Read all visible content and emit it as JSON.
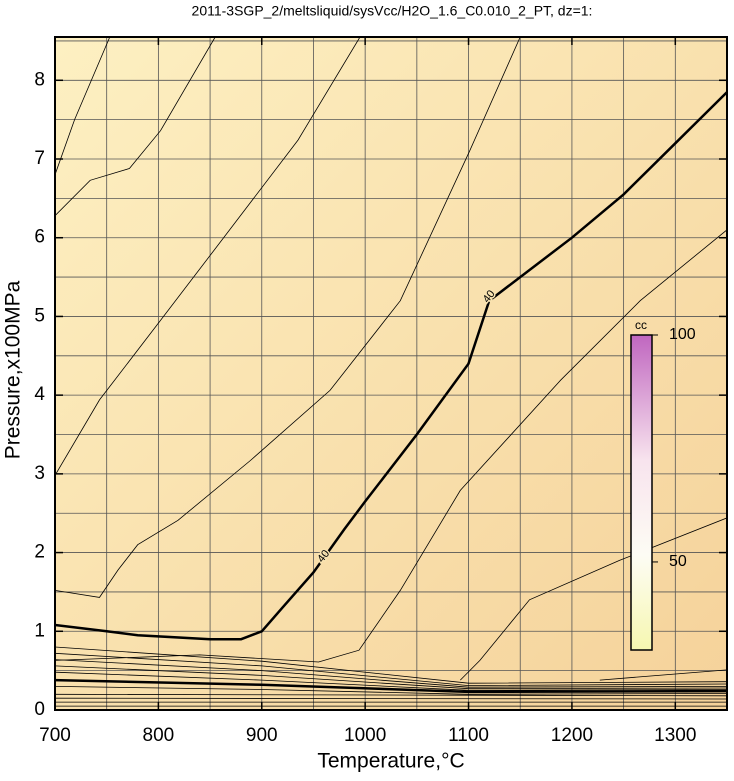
{
  "chart_data": {
    "type": "contour",
    "title": "2011-3SGP_2/meltsliquid/sysVcc/H2O_1.6_C0.010_2_PT, dz=1:",
    "xlabel": "Temperature,°C",
    "ylabel": "Pressure,x100MPa",
    "xlim": [
      700,
      1350
    ],
    "ylim": [
      0,
      8.55
    ],
    "xticks": [
      700,
      800,
      900,
      1000,
      1100,
      1200,
      1300
    ],
    "yticks": [
      0,
      1,
      2,
      3,
      4,
      5,
      6,
      7,
      8
    ],
    "xgrid_step": 50,
    "ygrid_step": 0.5,
    "color": "#000000",
    "series": [
      {
        "x": [
          700,
          750,
          780,
          850,
          880,
          900,
          920,
          950,
          980,
          1000,
          1050,
          1100,
          1120,
          1150,
          1200,
          1250,
          1300,
          1350
        ],
        "y": [
          1.08,
          1.0,
          0.95,
          0.9,
          0.9,
          1.0,
          1.3,
          1.75,
          2.3,
          2.65,
          3.5,
          4.4,
          5.2,
          5.5,
          6.0,
          6.55,
          7.2,
          7.85
        ],
        "bold": true
      },
      {
        "x": [
          700,
          719,
          753
        ],
        "y": [
          6.8,
          7.5,
          8.55
        ]
      },
      {
        "x": [
          700,
          734,
          772,
          802,
          855
        ],
        "y": [
          6.28,
          6.73,
          6.88,
          7.36,
          8.55
        ]
      },
      {
        "x": [
          700,
          743,
          802,
          869,
          935,
          995
        ],
        "y": [
          2.98,
          3.94,
          4.95,
          6.1,
          7.24,
          8.55
        ]
      },
      {
        "x": [
          700,
          743,
          761,
          780,
          819,
          889,
          966,
          1034,
          1101,
          1150
        ],
        "y": [
          1.52,
          1.43,
          1.78,
          2.1,
          2.41,
          3.17,
          4.06,
          5.2,
          7.1,
          8.55
        ]
      },
      {
        "x": [
          700,
          840,
          955,
          994,
          1034,
          1092,
          1189,
          1266,
          1350
        ],
        "y": [
          0.63,
          0.7,
          0.61,
          0.76,
          1.52,
          2.79,
          4.19,
          5.2,
          6.1
        ]
      },
      {
        "x": [
          1092,
          1111,
          1159,
          1246,
          1350
        ],
        "y": [
          0.38,
          0.63,
          1.4,
          1.9,
          2.44
        ]
      },
      {
        "x": [
          1227,
          1350
        ],
        "y": [
          0.38,
          0.51
        ]
      },
      {
        "x": [
          700,
          900,
          1100,
          1350
        ],
        "y": [
          0.8,
          0.62,
          0.34,
          0.36
        ]
      },
      {
        "x": [
          700,
          900,
          1100,
          1350
        ],
        "y": [
          0.72,
          0.56,
          0.31,
          0.33
        ]
      },
      {
        "x": [
          700,
          900,
          1100,
          1350
        ],
        "y": [
          0.64,
          0.5,
          0.29,
          0.3
        ]
      },
      {
        "x": [
          700,
          900,
          1100,
          1350
        ],
        "y": [
          0.56,
          0.44,
          0.27,
          0.28
        ]
      },
      {
        "x": [
          700,
          900,
          1100,
          1350
        ],
        "y": [
          0.48,
          0.38,
          0.25,
          0.26
        ]
      },
      {
        "x": [
          700,
          900,
          1100,
          1350
        ],
        "y": [
          0.38,
          0.32,
          0.23,
          0.24
        ],
        "bold": true
      },
      {
        "x": [
          700,
          900,
          1100,
          1350
        ],
        "y": [
          0.3,
          0.26,
          0.2,
          0.21
        ]
      },
      {
        "x": [
          700,
          1350
        ],
        "y": [
          0.2,
          0.18
        ]
      },
      {
        "x": [
          700,
          1350
        ],
        "y": [
          0.15,
          0.14
        ]
      },
      {
        "x": [
          700,
          1350
        ],
        "y": [
          0.1,
          0.1
        ]
      },
      {
        "x": [
          700,
          1350
        ],
        "y": [
          0.05,
          0.05
        ]
      }
    ],
    "contour_labels": [
      {
        "text": "40",
        "x": 960,
        "y": 1.95
      },
      {
        "text": "40",
        "x": 1120,
        "y": 5.25
      }
    ],
    "colorbar": {
      "label": "cc",
      "clim": [
        30.6,
        100
      ],
      "ticks": [
        50,
        100
      ]
    }
  }
}
